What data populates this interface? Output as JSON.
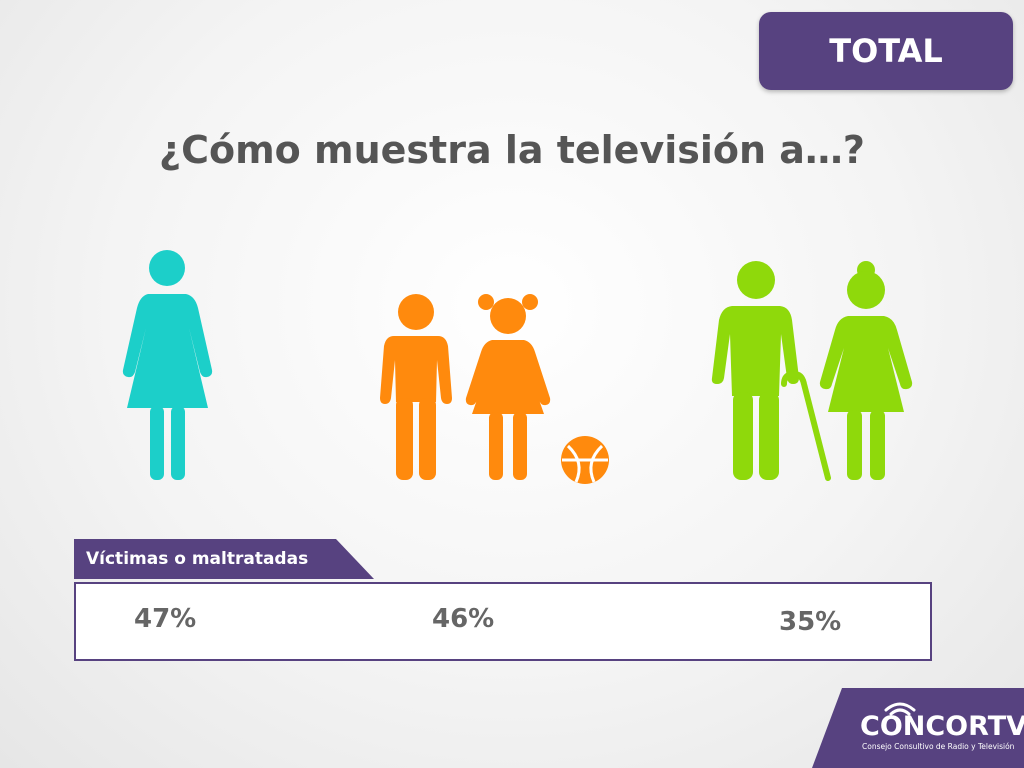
{
  "badge": {
    "label": "TOTAL"
  },
  "title": "¿Cómo muestra la televisión a…?",
  "colors": {
    "purple": "#574280",
    "woman": "#1ccfc9",
    "children": "#ff8a0d",
    "elderly": "#8fd90b"
  },
  "groups": [
    {
      "figure": "woman-icon",
      "value": "47%"
    },
    {
      "figure": "children-icon",
      "value": "46%"
    },
    {
      "figure": "elderly-couple-icon",
      "value": "35%"
    }
  ],
  "category": {
    "label": "Víctimas o maltratadas"
  },
  "logo": {
    "name": "CONCORTV",
    "subtitle": "Consejo Consultivo de Radio y Televisión"
  }
}
